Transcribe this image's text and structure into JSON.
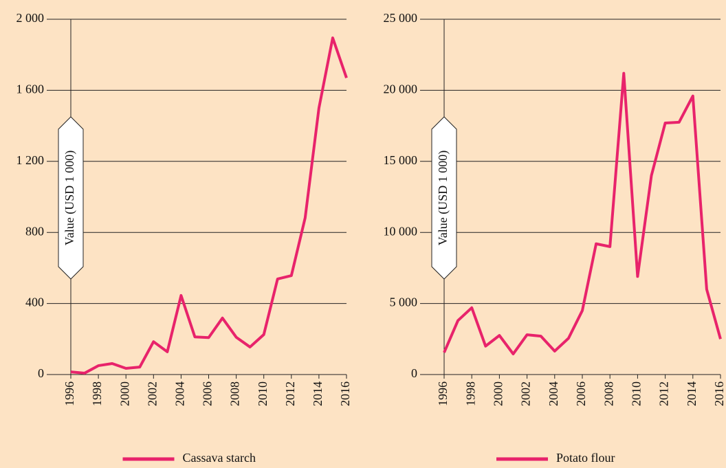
{
  "chart_data": [
    {
      "type": "line",
      "y_label": "Value (USD 1 000)",
      "x": [
        1996,
        1997,
        1998,
        1999,
        2000,
        2001,
        2002,
        2003,
        2004,
        2005,
        2006,
        2007,
        2008,
        2009,
        2010,
        2011,
        2012,
        2013,
        2014,
        2015,
        2016
      ],
      "series": [
        {
          "name": "Cassava starch",
          "color": "#e8236b",
          "values": [
            15,
            8,
            50,
            62,
            35,
            42,
            185,
            128,
            445,
            212,
            208,
            318,
            210,
            155,
            225,
            538,
            557,
            882,
            1500,
            1895,
            1670
          ]
        }
      ],
      "xlim": [
        1996,
        2016
      ],
      "xticks": [
        1996,
        1998,
        2000,
        2002,
        2004,
        2006,
        2008,
        2010,
        2012,
        2014,
        2016
      ],
      "ylim": [
        0,
        2000
      ],
      "yticks": [
        0,
        400,
        800,
        {
          "value": 1200,
          "label": "1 200"
        },
        {
          "value": 1600,
          "label": "1 600"
        },
        {
          "value": 2000,
          "label": "2 000"
        }
      ],
      "grid": true
    },
    {
      "type": "line",
      "y_label": "Value (USD 1 000)",
      "x": [
        1996,
        1997,
        1998,
        1999,
        2000,
        2001,
        2002,
        2003,
        2004,
        2005,
        2006,
        2007,
        2008,
        2009,
        2010,
        2011,
        2012,
        2013,
        2014,
        2015,
        2016
      ],
      "series": [
        {
          "name": "Potato flour",
          "color": "#e8236b",
          "values": [
            1550,
            3800,
            4700,
            2000,
            2750,
            1450,
            2800,
            2700,
            1650,
            2550,
            4500,
            9200,
            9000,
            21200,
            6900,
            14000,
            17700,
            17750,
            19600,
            6000,
            2500
          ]
        }
      ],
      "xlim": [
        1996,
        2016
      ],
      "xticks": [
        1996,
        1998,
        2000,
        2002,
        2004,
        2006,
        2008,
        2010,
        2012,
        2014,
        2016
      ],
      "ylim": [
        0,
        25000
      ],
      "yticks": [
        0,
        {
          "value": 5000,
          "label": "5 000"
        },
        {
          "value": 10000,
          "label": "10 000"
        },
        {
          "value": 15000,
          "label": "15 000"
        },
        {
          "value": 20000,
          "label": "20 000"
        },
        {
          "value": 25000,
          "label": "25 000"
        }
      ],
      "grid": true
    }
  ]
}
